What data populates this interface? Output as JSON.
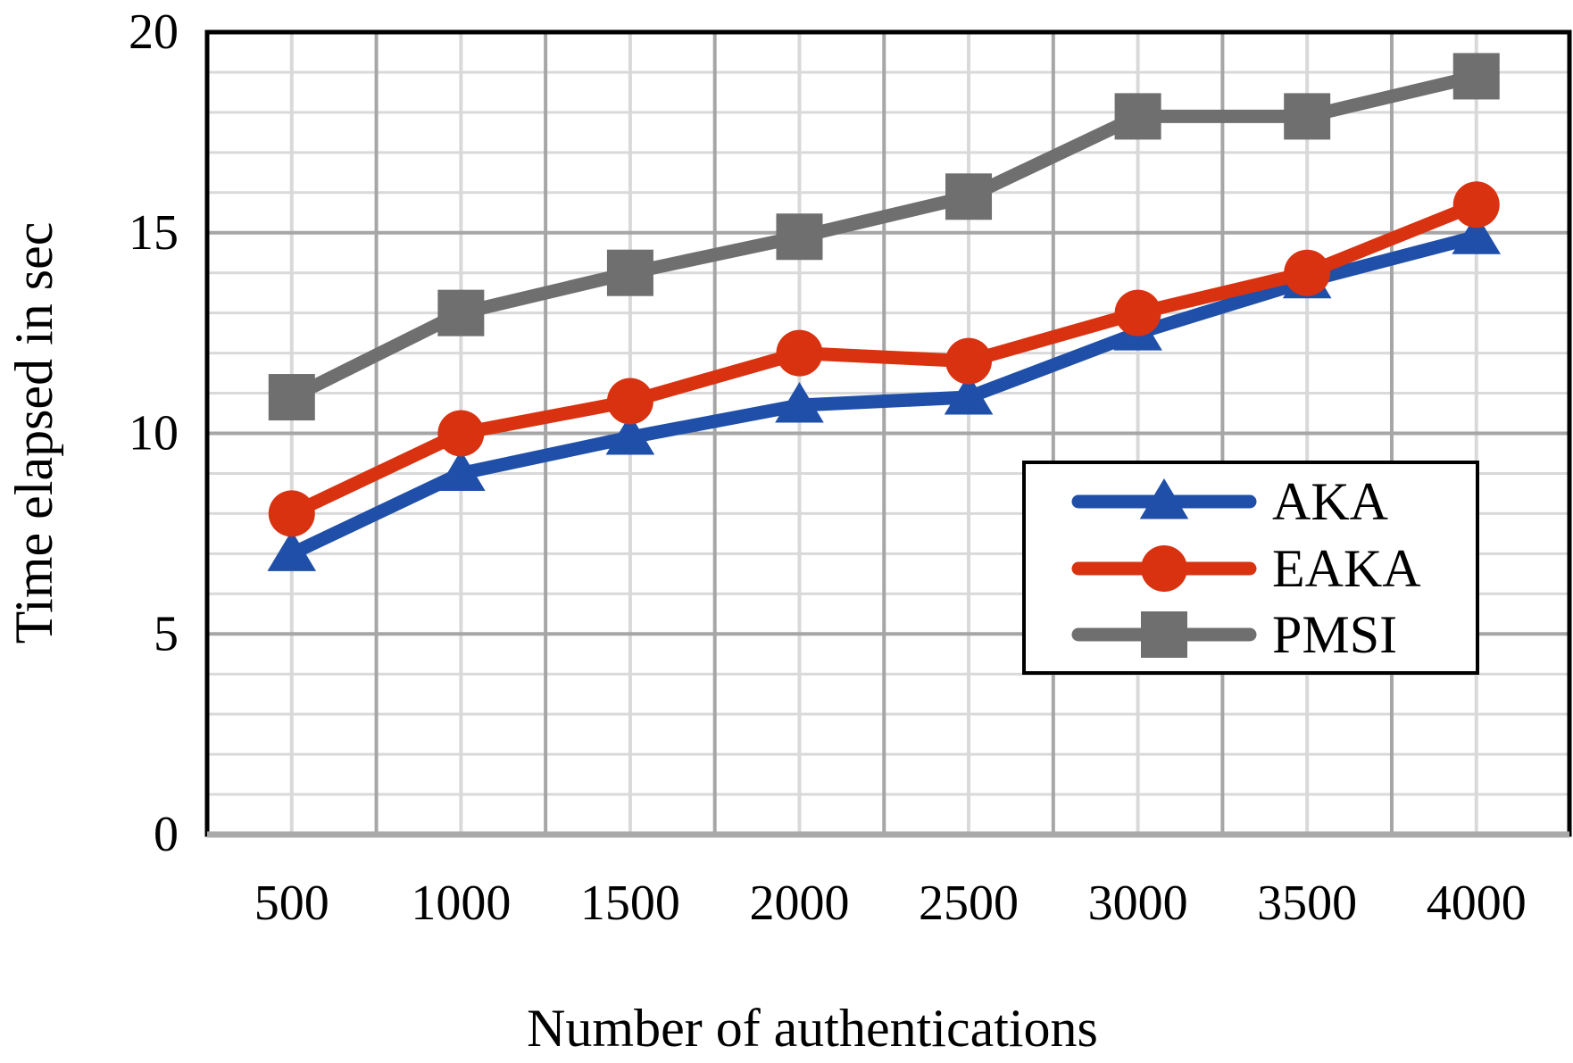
{
  "chart_data": {
    "type": "line",
    "title": "",
    "xlabel": "Number of authentications",
    "ylabel": "Time elapsed in sec",
    "categories": [
      "500",
      "1000",
      "1500",
      "2000",
      "2500",
      "3000",
      "3500",
      "4000"
    ],
    "ylim": [
      0,
      20
    ],
    "yticks": [
      "0",
      "5",
      "10",
      "15",
      "20"
    ],
    "grid": true,
    "legend_position": "center-right",
    "series": [
      {
        "name": "AKA",
        "color": "#1f4fa8",
        "marker": "triangle",
        "values": [
          7.0,
          9.0,
          9.9,
          10.7,
          10.9,
          12.5,
          13.8,
          14.9
        ]
      },
      {
        "name": "EAKA",
        "color": "#d93211",
        "marker": "circle",
        "values": [
          8.0,
          10.0,
          10.8,
          12.0,
          11.8,
          13.0,
          14.0,
          15.7
        ]
      },
      {
        "name": "PMSI",
        "color": "#6f6f6f",
        "marker": "square",
        "values": [
          10.9,
          13.0,
          14.0,
          14.9,
          15.9,
          17.9,
          17.9,
          18.9
        ]
      }
    ]
  }
}
